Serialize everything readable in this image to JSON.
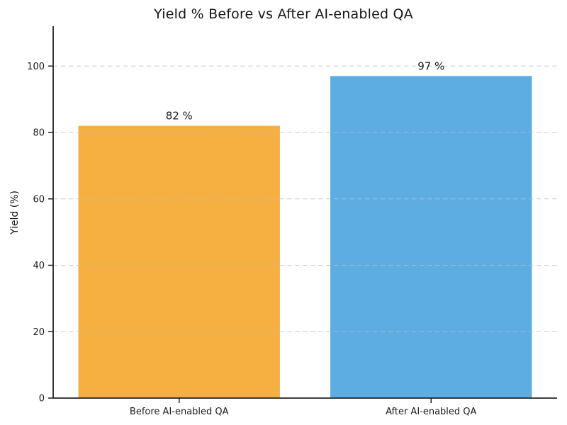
{
  "chart_data": {
    "type": "bar",
    "title": "Yield % Before vs After AI-enabled QA",
    "categories": [
      "Before AI-enabled QA",
      "After AI-enabled QA"
    ],
    "values": [
      82,
      97
    ],
    "bar_labels": [
      "82 %",
      "97 %"
    ],
    "bar_colors": [
      "#f5b041",
      "#5dade2"
    ],
    "xlabel": "",
    "ylabel": "Yield (%)",
    "yticks": [
      0,
      20,
      40,
      60,
      80,
      100
    ],
    "ylim": [
      0,
      112
    ],
    "bar_width_fraction": 0.8,
    "grid": "horizontal-dashed-over-bars",
    "grid_color": "#bfbfbf",
    "axis_color": "#222222",
    "text_color": "#1a1a1a",
    "background": "#ffffff",
    "legend_position": "none"
  }
}
